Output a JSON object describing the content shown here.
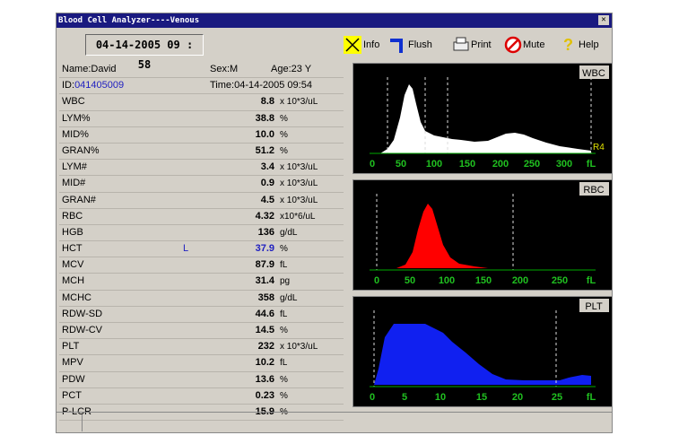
{
  "window": {
    "title": "Blood Cell Analyzer----Venous"
  },
  "toolbar": {
    "datetime": "04-14-2005  09 : 58",
    "buttons": [
      "Info",
      "Flush",
      "Print",
      "Mute",
      "Help"
    ]
  },
  "patient": [
    [
      {
        "label": "Name:",
        "value": "David"
      },
      {
        "label": "Sex:",
        "value": "M"
      },
      {
        "label": "Age:",
        "value": "23 Y"
      }
    ],
    [
      {
        "label": "ID:",
        "value": "041405009"
      },
      {
        "label": "Time:",
        "value": "04-14-2005 09:54"
      }
    ]
  ],
  "results": [
    [
      "WBC",
      "",
      "8.8",
      "x  10*3/uL"
    ],
    [
      "LYM%",
      "",
      "38.8",
      "%"
    ],
    [
      "MID%",
      "",
      "10.0",
      "%"
    ],
    [
      "GRAN%",
      "",
      "51.2",
      "%"
    ],
    [
      "LYM#",
      "",
      "3.4",
      "x  10*3/uL"
    ],
    [
      "MID#",
      "",
      "0.9",
      "x  10*3/uL"
    ],
    [
      "GRAN#",
      "",
      "4.5",
      "x  10*3/uL"
    ],
    [
      "RBC",
      "",
      "4.32",
      "x10*6/uL"
    ],
    [
      "HGB",
      "",
      "136",
      "g/dL"
    ],
    [
      "HCT",
      "L",
      "37.9",
      "%"
    ],
    [
      "MCV",
      "",
      "87.9",
      "fL"
    ],
    [
      "MCH",
      "",
      "31.4",
      "pg"
    ],
    [
      "MCHC",
      "",
      "358",
      "g/dL"
    ],
    [
      "RDW-SD",
      "",
      "44.6",
      "fL"
    ],
    [
      "RDW-CV",
      "",
      "14.5",
      "%"
    ],
    [
      "PLT",
      "",
      "232",
      "x  10*3/uL"
    ],
    [
      "MPV",
      "",
      "10.2",
      "fL"
    ],
    [
      "PDW",
      "",
      "13.6",
      "%"
    ],
    [
      "PCT",
      "",
      "0.23",
      "%"
    ],
    [
      "P-LCR",
      "",
      "15.9",
      "%"
    ]
  ],
  "histograms": [
    {
      "label": "WBC",
      "marker": "R4",
      "ticks": [
        "0",
        "50",
        "100",
        "150",
        "200",
        "250",
        "300",
        "fL"
      ]
    },
    {
      "label": "RBC",
      "ticks": [
        "0",
        "50",
        "100",
        "150",
        "200",
        "250",
        "fL"
      ]
    },
    {
      "label": "PLT",
      "ticks": [
        "0",
        "5",
        "10",
        "15",
        "20",
        "25",
        "fL"
      ]
    }
  ]
}
